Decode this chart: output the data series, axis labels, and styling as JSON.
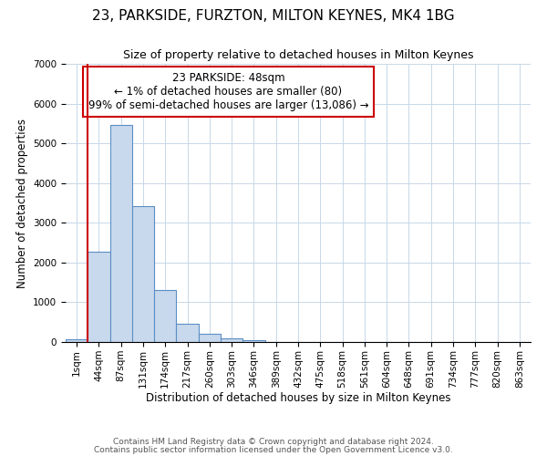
{
  "title": "23, PARKSIDE, FURZTON, MILTON KEYNES, MK4 1BG",
  "subtitle": "Size of property relative to detached houses in Milton Keynes",
  "xlabel": "Distribution of detached houses by size in Milton Keynes",
  "ylabel": "Number of detached properties",
  "bar_color": "#c9d9ed",
  "bar_edge_color": "#5b8ec4",
  "annotation_box_color": "#cc0000",
  "property_line_color": "#cc0000",
  "categories": [
    "1sqm",
    "44sqm",
    "87sqm",
    "131sqm",
    "174sqm",
    "217sqm",
    "260sqm",
    "303sqm",
    "346sqm",
    "389sqm",
    "432sqm",
    "475sqm",
    "518sqm",
    "561sqm",
    "604sqm",
    "648sqm",
    "691sqm",
    "734sqm",
    "777sqm",
    "820sqm",
    "863sqm"
  ],
  "values": [
    80,
    2280,
    5460,
    3430,
    1310,
    470,
    200,
    90,
    50,
    0,
    0,
    0,
    0,
    0,
    0,
    0,
    0,
    0,
    0,
    0,
    0
  ],
  "property_line_x": 1,
  "annotation_text_line1": "23 PARKSIDE: 48sqm",
  "annotation_text_line2": "← 1% of detached houses are smaller (80)",
  "annotation_text_line3": "99% of semi-detached houses are larger (13,086) →",
  "ylim": [
    0,
    7000
  ],
  "footer1": "Contains HM Land Registry data © Crown copyright and database right 2024.",
  "footer2": "Contains public sector information licensed under the Open Government Licence v3.0.",
  "background_color": "#ffffff",
  "grid_color": "#c8d8e8",
  "title_fontsize": 11,
  "subtitle_fontsize": 9,
  "annotation_fontsize": 8.5,
  "tick_fontsize": 7.5,
  "ylabel_fontsize": 8.5,
  "xlabel_fontsize": 8.5,
  "footer_fontsize": 6.5
}
